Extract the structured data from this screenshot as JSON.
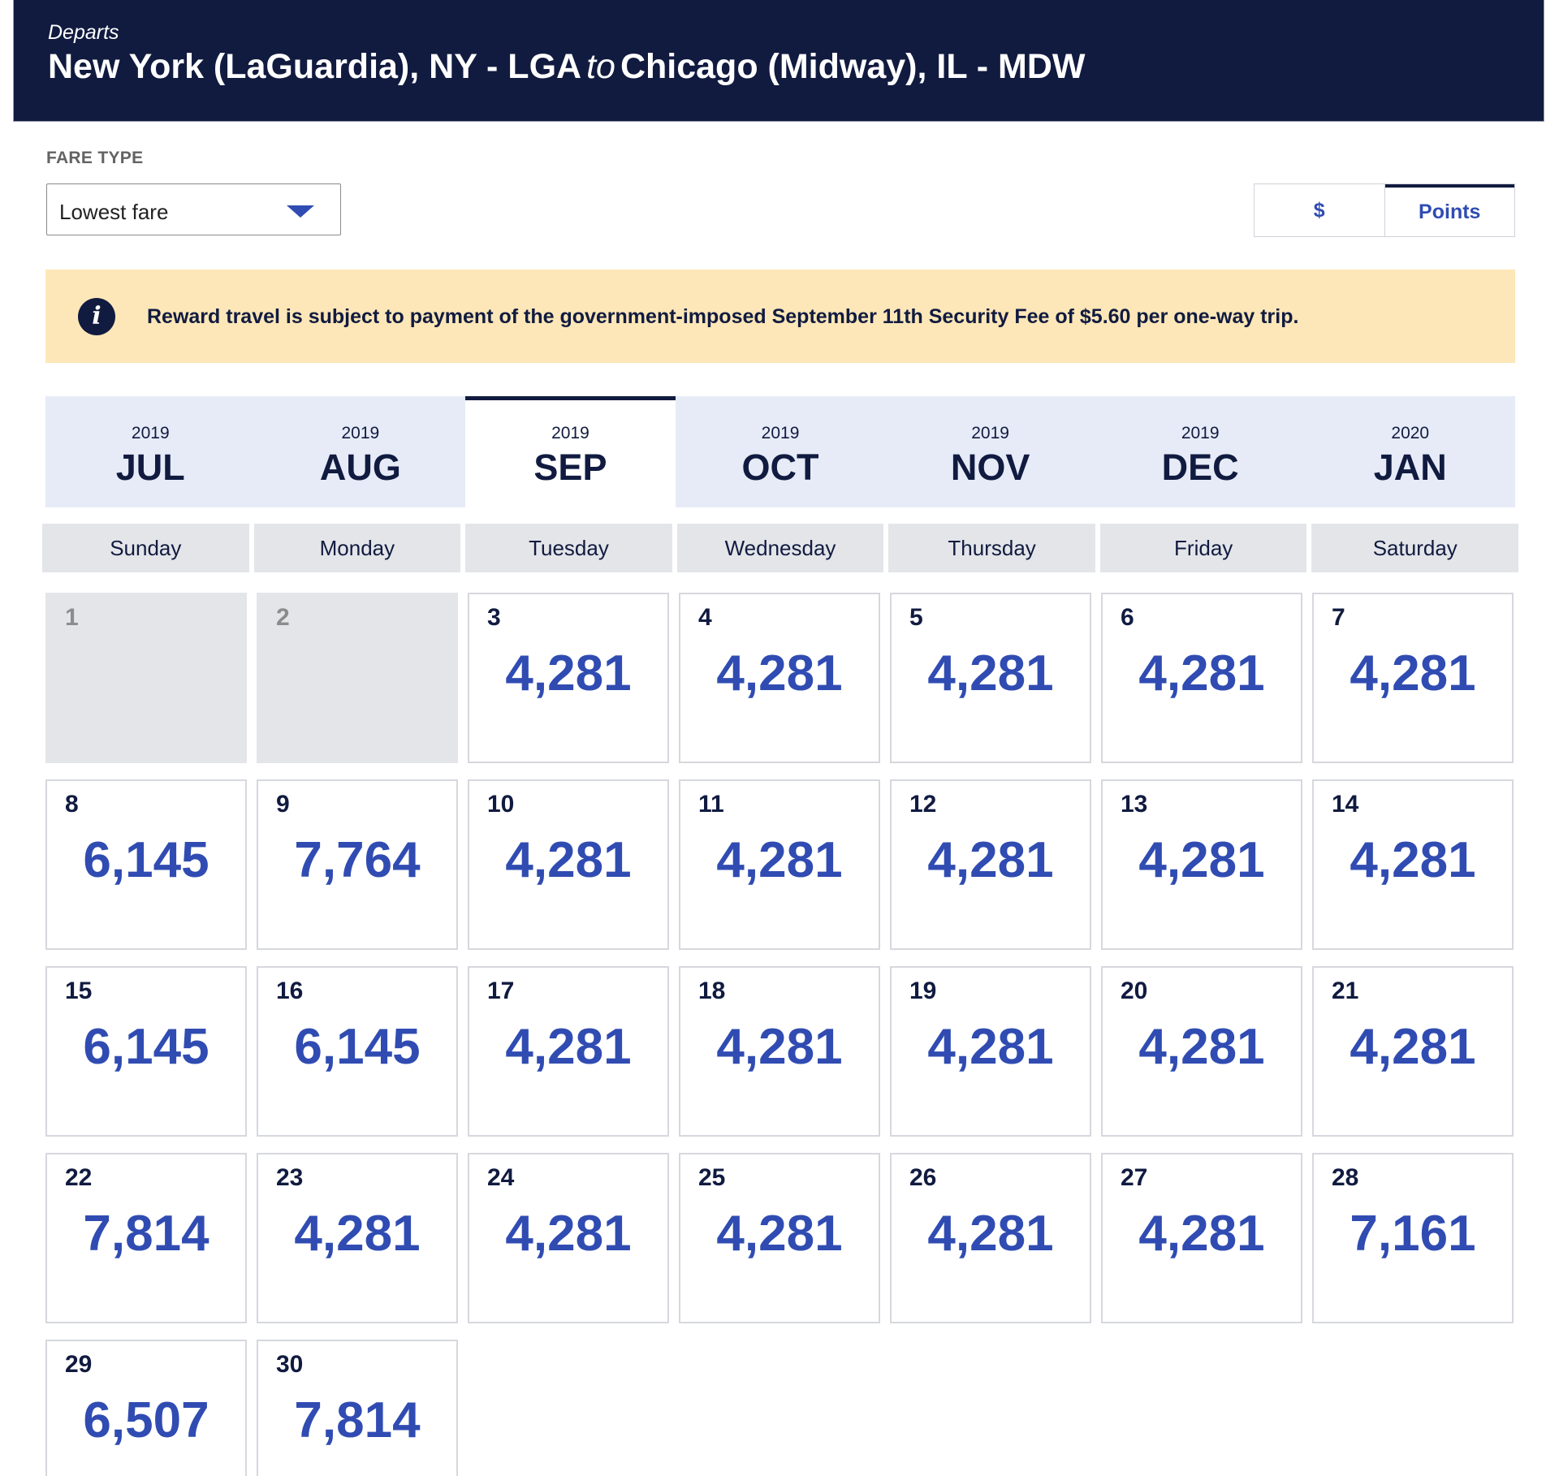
{
  "header": {
    "label": "Departs",
    "origin": "New York (LaGuardia), NY - LGA",
    "connector": "to",
    "destination": "Chicago (Midway), IL - MDW"
  },
  "fare_type": {
    "label": "FARE TYPE",
    "selected": "Lowest fare"
  },
  "currency_toggle": {
    "dollar_label": "$",
    "points_label": "Points",
    "selected": "Points"
  },
  "notice": {
    "message": "Reward travel is subject to payment of the government-imposed September 11th Security Fee of $5.60 per one-way trip."
  },
  "months": [
    {
      "year": "2019",
      "month": "JUL",
      "selected": false
    },
    {
      "year": "2019",
      "month": "AUG",
      "selected": false
    },
    {
      "year": "2019",
      "month": "SEP",
      "selected": true
    },
    {
      "year": "2019",
      "month": "OCT",
      "selected": false
    },
    {
      "year": "2019",
      "month": "NOV",
      "selected": false
    },
    {
      "year": "2019",
      "month": "DEC",
      "selected": false
    },
    {
      "year": "2020",
      "month": "JAN",
      "selected": false
    }
  ],
  "weekdays": [
    "Sunday",
    "Monday",
    "Tuesday",
    "Wednesday",
    "Thursday",
    "Friday",
    "Saturday"
  ],
  "days": [
    {
      "day": "1",
      "price": "",
      "disabled": true
    },
    {
      "day": "2",
      "price": "",
      "disabled": true
    },
    {
      "day": "3",
      "price": "4,281"
    },
    {
      "day": "4",
      "price": "4,281"
    },
    {
      "day": "5",
      "price": "4,281"
    },
    {
      "day": "6",
      "price": "4,281"
    },
    {
      "day": "7",
      "price": "4,281"
    },
    {
      "day": "8",
      "price": "6,145"
    },
    {
      "day": "9",
      "price": "7,764"
    },
    {
      "day": "10",
      "price": "4,281"
    },
    {
      "day": "11",
      "price": "4,281"
    },
    {
      "day": "12",
      "price": "4,281"
    },
    {
      "day": "13",
      "price": "4,281"
    },
    {
      "day": "14",
      "price": "4,281"
    },
    {
      "day": "15",
      "price": "6,145"
    },
    {
      "day": "16",
      "price": "6,145"
    },
    {
      "day": "17",
      "price": "4,281"
    },
    {
      "day": "18",
      "price": "4,281"
    },
    {
      "day": "19",
      "price": "4,281"
    },
    {
      "day": "20",
      "price": "4,281"
    },
    {
      "day": "21",
      "price": "4,281"
    },
    {
      "day": "22",
      "price": "7,814"
    },
    {
      "day": "23",
      "price": "4,281"
    },
    {
      "day": "24",
      "price": "4,281"
    },
    {
      "day": "25",
      "price": "4,281"
    },
    {
      "day": "26",
      "price": "4,281"
    },
    {
      "day": "27",
      "price": "4,281"
    },
    {
      "day": "28",
      "price": "7,161"
    },
    {
      "day": "29",
      "price": "6,507"
    },
    {
      "day": "30",
      "price": "7,814"
    }
  ]
}
